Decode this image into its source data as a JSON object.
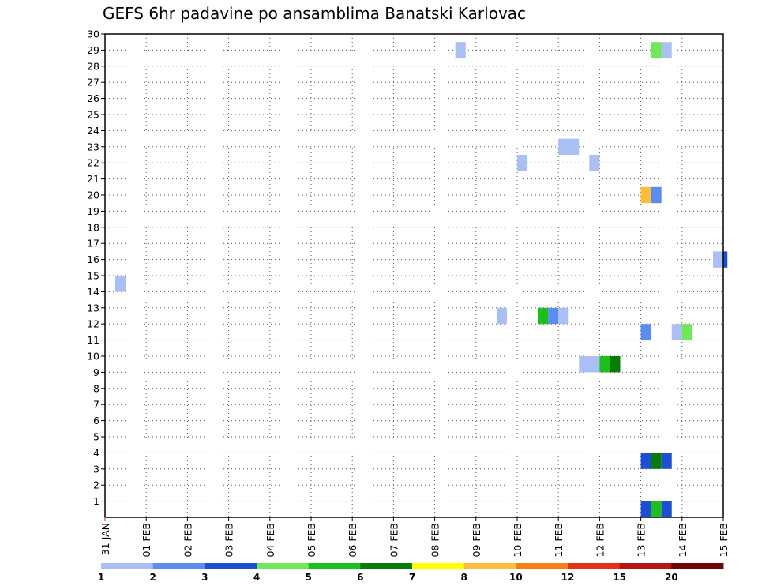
{
  "chart_data": {
    "type": "heatmap",
    "title": "GEFS 6hr padavine po ansamblima Banatski Karlovac",
    "xlabel": "",
    "ylabel": "",
    "x_tick_labels": [
      "31 JAN",
      "01 FEB",
      "02 FEB",
      "03 FEB",
      "04 FEB",
      "05 FEB",
      "06 FEB",
      "07 FEB",
      "08 FEB",
      "09 FEB",
      "10 FEB",
      "11 FEB",
      "12 FEB",
      "13 FEB",
      "14 FEB",
      "15 FEB"
    ],
    "x_range_days": [
      0,
      15
    ],
    "ylim": [
      0,
      30
    ],
    "y_ticks": [
      1,
      2,
      3,
      4,
      5,
      6,
      7,
      8,
      9,
      10,
      11,
      12,
      13,
      14,
      15,
      16,
      17,
      18,
      19,
      20,
      21,
      22,
      23,
      24,
      25,
      26,
      27,
      28,
      29,
      30
    ],
    "grid": true,
    "legend": {
      "position": "bottom",
      "labels": [
        "1",
        "2",
        "3",
        "4",
        "5",
        "6",
        "7",
        "8",
        "10",
        "12",
        "15",
        "20"
      ],
      "colors": [
        "#aac0f4",
        "#5b8cf0",
        "#1c4fd6",
        "#6fe85a",
        "#1cbf1c",
        "#0a7a0a",
        "#ffff00",
        "#fbbf3c",
        "#f57f17",
        "#e53018",
        "#b81414",
        "#6e0808"
      ]
    },
    "cells": [
      {
        "member": 14.5,
        "t_start": 0.25,
        "t_end": 0.5,
        "color": "#aac0f4"
      },
      {
        "member": 29,
        "t_start": 8.5,
        "t_end": 8.75,
        "color": "#aac0f4"
      },
      {
        "member": 22,
        "t_start": 10.0,
        "t_end": 10.25,
        "color": "#aac0f4"
      },
      {
        "member": 23,
        "t_start": 11.0,
        "t_end": 11.5,
        "color": "#aac0f4"
      },
      {
        "member": 22,
        "t_start": 11.75,
        "t_end": 12.0,
        "color": "#aac0f4"
      },
      {
        "member": 12.5,
        "t_start": 9.5,
        "t_end": 9.75,
        "color": "#aac0f4"
      },
      {
        "member": 12.5,
        "t_start": 10.5,
        "t_end": 10.75,
        "color": "#1cbf1c"
      },
      {
        "member": 12.5,
        "t_start": 10.75,
        "t_end": 11.0,
        "color": "#5b8cf0"
      },
      {
        "member": 12.5,
        "t_start": 11.0,
        "t_end": 11.25,
        "color": "#aac0f4"
      },
      {
        "member": 9.5,
        "t_start": 11.5,
        "t_end": 12.0,
        "color": "#aac0f4"
      },
      {
        "member": 9.5,
        "t_start": 12.0,
        "t_end": 12.25,
        "color": "#1cbf1c"
      },
      {
        "member": 9.5,
        "t_start": 12.25,
        "t_end": 12.5,
        "color": "#0a7a0a"
      },
      {
        "member": 29,
        "t_start": 13.25,
        "t_end": 13.5,
        "color": "#6fe85a"
      },
      {
        "member": 29,
        "t_start": 13.5,
        "t_end": 13.75,
        "color": "#aac0f4"
      },
      {
        "member": 20,
        "t_start": 13.0,
        "t_end": 13.25,
        "color": "#fbbf3c"
      },
      {
        "member": 20,
        "t_start": 13.25,
        "t_end": 13.5,
        "color": "#5b8cf0"
      },
      {
        "member": 16,
        "t_start": 14.75,
        "t_end": 15.0,
        "color": "#aac0f4"
      },
      {
        "member": 16,
        "t_start": 15.0,
        "t_end": 15.1,
        "color": "#1c4fd6"
      },
      {
        "member": 11.5,
        "t_start": 13.0,
        "t_end": 13.25,
        "color": "#5b8cf0"
      },
      {
        "member": 11.5,
        "t_start": 13.75,
        "t_end": 14.0,
        "color": "#aac0f4"
      },
      {
        "member": 11.5,
        "t_start": 14.0,
        "t_end": 14.25,
        "color": "#6fe85a"
      },
      {
        "member": 3.5,
        "t_start": 13.0,
        "t_end": 13.25,
        "color": "#1c4fd6"
      },
      {
        "member": 3.5,
        "t_start": 13.25,
        "t_end": 13.5,
        "color": "#0a7a0a"
      },
      {
        "member": 3.5,
        "t_start": 13.5,
        "t_end": 13.75,
        "color": "#1c4fd6"
      },
      {
        "member": 0.5,
        "t_start": 13.0,
        "t_end": 13.25,
        "color": "#1c4fd6"
      },
      {
        "member": 0.5,
        "t_start": 13.25,
        "t_end": 13.5,
        "color": "#1cbf1c"
      },
      {
        "member": 0.5,
        "t_start": 13.5,
        "t_end": 13.75,
        "color": "#1c4fd6"
      }
    ]
  }
}
